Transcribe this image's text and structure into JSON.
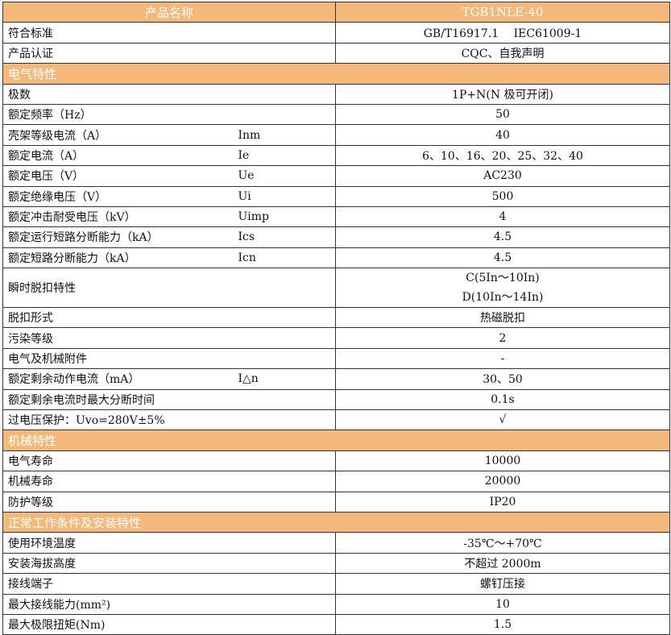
{
  "header": {
    "label": "产品名称",
    "value": "TGB1NLE-40"
  },
  "colors": {
    "header_bg": "#f4b97a",
    "header_text": "#ffffff"
  },
  "rows": [
    {
      "type": "row",
      "label": "符合标准",
      "symbol": "",
      "value": "GB/T16917.1　 IEC61009-1"
    },
    {
      "type": "row",
      "label": "产品认证",
      "symbol": "",
      "value": "CQC、自我声明"
    },
    {
      "type": "section",
      "label": "电气特性"
    },
    {
      "type": "row",
      "label": "极数",
      "symbol": "",
      "value": "1P+N(N 极可开闭)"
    },
    {
      "type": "row",
      "label": "额定频率（Hz）",
      "symbol": "",
      "value": "50"
    },
    {
      "type": "row",
      "label": "壳架等级电流（A）",
      "symbol": "Inm",
      "value": "40"
    },
    {
      "type": "row",
      "label": "额定电流（A）",
      "symbol": "Ie",
      "value": "6、10、16、20、25、32、40"
    },
    {
      "type": "row",
      "label": "额定电压（V）",
      "symbol": "Ue",
      "value": "AC230"
    },
    {
      "type": "row",
      "label": "额定绝缘电压（V）",
      "symbol": "Ui",
      "value": "500"
    },
    {
      "type": "row",
      "label": "额定冲击耐受电压（kV）",
      "symbol": "Uimp",
      "value": "4"
    },
    {
      "type": "row",
      "label": "额定运行短路分断能力（kA）",
      "symbol": "Ics",
      "value": "4.5"
    },
    {
      "type": "row",
      "label": "额定短路分断能力（kA）",
      "symbol": "Icn",
      "value": "4.5"
    },
    {
      "type": "double",
      "label": "瞬时脱扣特性",
      "symbol": "",
      "value": "C(5In～10In)",
      "value2": "D(10In～14In)"
    },
    {
      "type": "row",
      "label": "脱扣形式",
      "symbol": "",
      "value": "热磁脱扣"
    },
    {
      "type": "row",
      "label": "污染等级",
      "symbol": "",
      "value": "2"
    },
    {
      "type": "row",
      "label": "电气及机械附件",
      "symbol": "",
      "value": "-"
    },
    {
      "type": "row",
      "label": "额定剩余动作电流（mA）",
      "symbol": "I△n",
      "value": "30、50"
    },
    {
      "type": "row",
      "label": "额定剩余电流时最大分断时间",
      "symbol": "",
      "value": "0.1s"
    },
    {
      "type": "row",
      "label": "过电压保护：Uvo=280V±5%",
      "symbol": "",
      "value": "√"
    },
    {
      "type": "section",
      "label": "机械特性"
    },
    {
      "type": "row",
      "label": "电气寿命",
      "symbol": "",
      "value": "10000"
    },
    {
      "type": "row",
      "label": "机械寿命",
      "symbol": "",
      "value": "20000"
    },
    {
      "type": "row",
      "label": "防护等级",
      "symbol": "",
      "value": "IP20"
    },
    {
      "type": "section",
      "label": "正常工作条件及安装特性"
    },
    {
      "type": "row",
      "label": "使用环境温度",
      "symbol": "",
      "value": "-35℃～+70℃"
    },
    {
      "type": "row",
      "label": "安装海拔高度",
      "symbol": "",
      "value": "不超过 2000m"
    },
    {
      "type": "row",
      "label": "接线端子",
      "symbol": "",
      "value": "螺钉压接"
    },
    {
      "type": "row",
      "label": "最大接线能力(mm²)",
      "symbol": "",
      "value": "10"
    },
    {
      "type": "row",
      "label": "最大极限扭矩(Nm)",
      "symbol": "",
      "value": "1.5"
    }
  ]
}
